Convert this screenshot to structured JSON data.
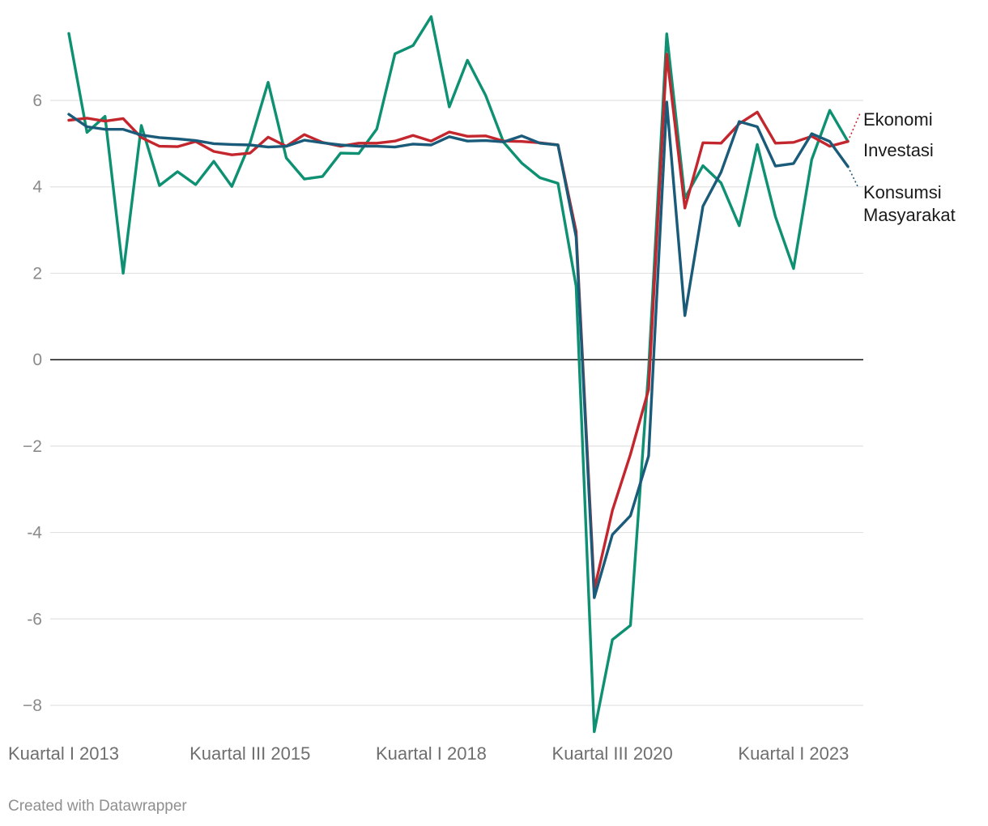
{
  "footer": {
    "credit": "Created with Datawrapper"
  },
  "chart_data": {
    "type": "line",
    "title": "",
    "xlabel": "",
    "ylabel": "",
    "ylim": [
      -8.5,
      7.9
    ],
    "y_ticks": [
      6,
      4,
      2,
      0,
      -2,
      -4,
      -6,
      -8
    ],
    "y_tick_labels": [
      "6",
      "4",
      "2",
      "0",
      "−2",
      "-4",
      "-6",
      "−8"
    ],
    "x_tick_labels": [
      "Kuartal I 2013",
      "Kuartal III 2015",
      "Kuartal I 2018",
      "Kuartal III 2020",
      "Kuartal I 2023"
    ],
    "x_tick_indices": [
      0,
      10,
      20,
      30,
      40
    ],
    "grid": true,
    "zero_line": true,
    "series": [
      {
        "name": "Ekonomi",
        "color": "#c4262e",
        "values": [
          5.54,
          5.59,
          5.52,
          5.58,
          5.14,
          4.94,
          4.93,
          5.05,
          4.82,
          4.74,
          4.78,
          5.15,
          4.94,
          5.21,
          5.03,
          4.94,
          5.01,
          5.01,
          5.06,
          5.19,
          5.06,
          5.27,
          5.17,
          5.18,
          5.06,
          5.05,
          5.02,
          4.97,
          2.97,
          -5.32,
          -3.49,
          -2.19,
          -0.69,
          7.07,
          3.51,
          5.02,
          5.01,
          5.46,
          5.73,
          5.01,
          5.03,
          5.17,
          4.94,
          5.05
        ]
      },
      {
        "name": "Investasi",
        "color": "#0e9072",
        "values": [
          7.55,
          5.26,
          5.63,
          2.0,
          5.42,
          4.03,
          4.35,
          4.05,
          4.59,
          4.01,
          5.01,
          6.42,
          4.67,
          4.18,
          4.24,
          4.78,
          4.77,
          5.34,
          7.08,
          7.27,
          7.94,
          5.85,
          6.93,
          6.12,
          5.03,
          4.55,
          4.21,
          4.08,
          1.7,
          -8.61,
          -6.48,
          -6.15,
          -0.23,
          7.54,
          3.74,
          4.49,
          4.09,
          3.1,
          4.98,
          3.31,
          2.11,
          4.63,
          5.77,
          5.05
        ]
      },
      {
        "name": "Konsumsi Masyarakat",
        "color": "#1a5b7a",
        "values": [
          5.68,
          5.39,
          5.33,
          5.33,
          5.2,
          5.14,
          5.11,
          5.07,
          5.0,
          4.98,
          4.97,
          4.92,
          4.94,
          5.08,
          5.02,
          4.97,
          4.94,
          4.94,
          4.92,
          4.99,
          4.97,
          5.16,
          5.06,
          5.07,
          5.04,
          5.18,
          5.01,
          4.97,
          2.84,
          -5.51,
          -4.05,
          -3.61,
          -2.23,
          5.96,
          1.02,
          3.55,
          4.34,
          5.51,
          5.39,
          4.48,
          4.54,
          5.23,
          5.05,
          4.47
        ]
      }
    ]
  }
}
